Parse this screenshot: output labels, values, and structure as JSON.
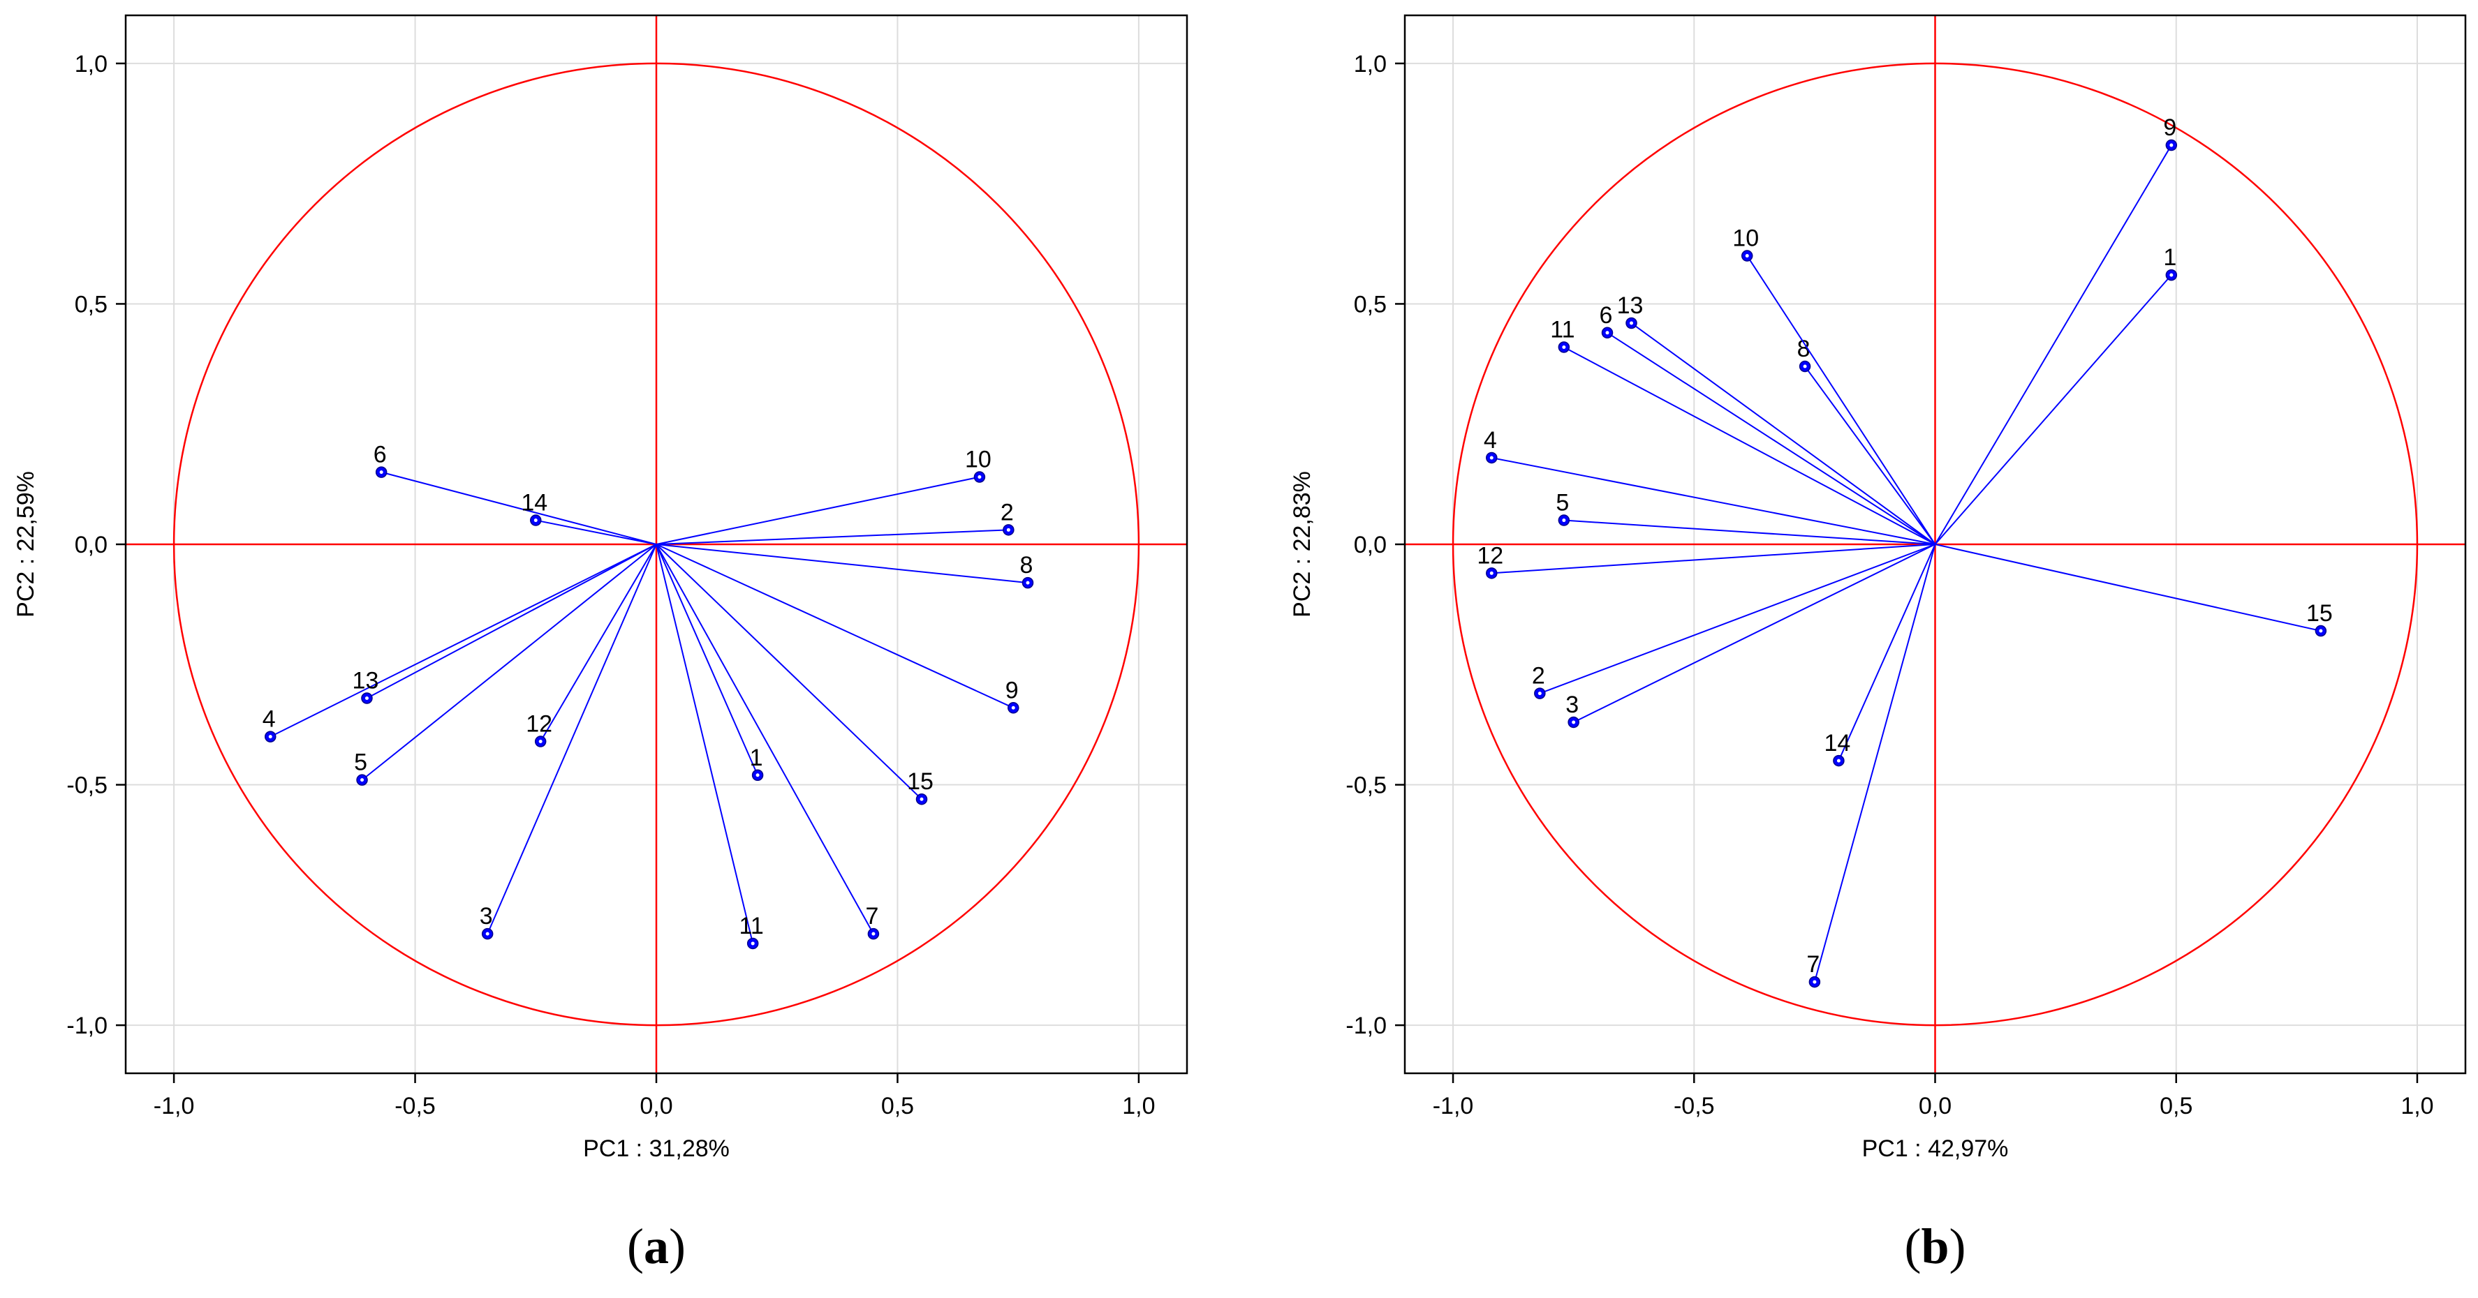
{
  "chart_data": [
    {
      "type": "scatter",
      "title": "",
      "panel_label": "a",
      "xlabel": "PC1 : 31,28%",
      "ylabel": "PC2 : 22,59%",
      "xlim": [
        -1.1,
        1.1
      ],
      "ylim": [
        -1.1,
        1.1
      ],
      "xticks": [
        -1.0,
        -0.5,
        0.0,
        0.5,
        1.0
      ],
      "yticks": [
        -1.0,
        -0.5,
        0.0,
        0.5,
        1.0
      ],
      "xtick_labels": [
        "-1,0",
        "-0,5",
        "0,0",
        "0,5",
        "1,0"
      ],
      "ytick_labels": [
        "-1,0",
        "-0,5",
        "0,0",
        "0,5",
        "1,0"
      ],
      "grid": true,
      "unit_circle": true,
      "vectors_from_origin": true,
      "points": [
        {
          "label": "1",
          "x": 0.21,
          "y": -0.48
        },
        {
          "label": "2",
          "x": 0.73,
          "y": 0.03
        },
        {
          "label": "3",
          "x": -0.35,
          "y": -0.81
        },
        {
          "label": "4",
          "x": -0.8,
          "y": -0.4
        },
        {
          "label": "5",
          "x": -0.61,
          "y": -0.49
        },
        {
          "label": "6",
          "x": -0.57,
          "y": 0.15
        },
        {
          "label": "7",
          "x": 0.45,
          "y": -0.81
        },
        {
          "label": "8",
          "x": 0.77,
          "y": -0.08
        },
        {
          "label": "9",
          "x": 0.74,
          "y": -0.34
        },
        {
          "label": "10",
          "x": 0.67,
          "y": 0.14
        },
        {
          "label": "11",
          "x": 0.2,
          "y": -0.83
        },
        {
          "label": "12",
          "x": -0.24,
          "y": -0.41
        },
        {
          "label": "13",
          "x": -0.6,
          "y": -0.32
        },
        {
          "label": "14",
          "x": -0.25,
          "y": 0.05
        },
        {
          "label": "15",
          "x": 0.55,
          "y": -0.53
        }
      ]
    },
    {
      "type": "scatter",
      "title": "",
      "panel_label": "b",
      "xlabel": "PC1 : 42,97%",
      "ylabel": "PC2 : 22,83%",
      "xlim": [
        -1.1,
        1.1
      ],
      "ylim": [
        -1.1,
        1.1
      ],
      "xticks": [
        -1.0,
        -0.5,
        0.0,
        0.5,
        1.0
      ],
      "yticks": [
        -1.0,
        -0.5,
        0.0,
        0.5,
        1.0
      ],
      "xtick_labels": [
        "-1,0",
        "-0,5",
        "0,0",
        "0,5",
        "1,0"
      ],
      "ytick_labels": [
        "-1,0",
        "-0,5",
        "0,0",
        "0,5",
        "1,0"
      ],
      "grid": true,
      "unit_circle": true,
      "vectors_from_origin": true,
      "points": [
        {
          "label": "1",
          "x": 0.49,
          "y": 0.56
        },
        {
          "label": "2",
          "x": -0.82,
          "y": -0.31
        },
        {
          "label": "3",
          "x": -0.75,
          "y": -0.37
        },
        {
          "label": "4",
          "x": -0.92,
          "y": 0.18
        },
        {
          "label": "5",
          "x": -0.77,
          "y": 0.05
        },
        {
          "label": "6",
          "x": -0.68,
          "y": 0.44
        },
        {
          "label": "7",
          "x": -0.25,
          "y": -0.91
        },
        {
          "label": "8",
          "x": -0.27,
          "y": 0.37
        },
        {
          "label": "9",
          "x": 0.49,
          "y": 0.83
        },
        {
          "label": "10",
          "x": -0.39,
          "y": 0.6
        },
        {
          "label": "11",
          "x": -0.77,
          "y": 0.41
        },
        {
          "label": "12",
          "x": -0.92,
          "y": -0.06
        },
        {
          "label": "13",
          "x": -0.63,
          "y": 0.46
        },
        {
          "label": "14",
          "x": -0.2,
          "y": -0.45
        },
        {
          "label": "15",
          "x": 0.8,
          "y": -0.18
        }
      ]
    }
  ],
  "colors": {
    "vector": "#0000ff",
    "point_fill": "#0000ff",
    "circle": "#ff0000",
    "crosshair": "#ff0000",
    "grid": "#dddddd",
    "frame": "#000000"
  }
}
